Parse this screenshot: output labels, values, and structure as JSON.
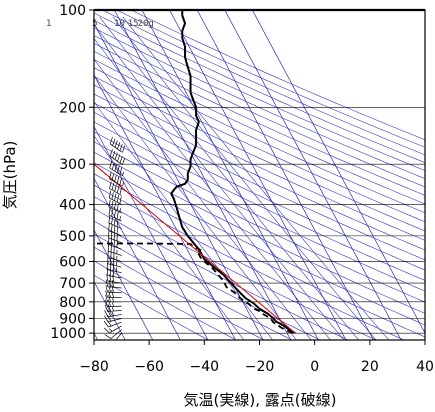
{
  "chart_data": {
    "type": "line",
    "title": "",
    "xlabel": "気温(実線), 露点(破線)",
    "ylabel": "気圧(hPa)",
    "xlim": [
      -80,
      40
    ],
    "ylim_pressure": [
      1050,
      100
    ],
    "y_scale": "log",
    "x_ticks": [
      -80,
      -60,
      -40,
      -20,
      0,
      20,
      40
    ],
    "y_ticks": [
      100,
      200,
      300,
      400,
      500,
      600,
      700,
      800,
      900,
      1000
    ],
    "grid": true,
    "mixing_ratio_labels": [
      "1",
      "5",
      "10",
      "15",
      "20g"
    ],
    "mixing_ratio_values": [
      1,
      5,
      10,
      15,
      20
    ],
    "colors": {
      "isotherm": "#2a2ab8",
      "dry_adiabat": "#3333cc",
      "mixing_ratio": "#3a3ac0",
      "parcel": "#dd0000",
      "grid": "#000000",
      "temperature": "#000000",
      "dewpoint": "#000000"
    },
    "series": [
      {
        "role": "temperature",
        "points": [
          [
            -7,
            1000
          ],
          [
            -9,
            980
          ],
          [
            -11,
            950
          ],
          [
            -14,
            920
          ],
          [
            -15,
            900
          ],
          [
            -17,
            870
          ],
          [
            -20,
            840
          ],
          [
            -22,
            810
          ],
          [
            -25,
            780
          ],
          [
            -27,
            750
          ],
          [
            -29,
            720
          ],
          [
            -31,
            690
          ],
          [
            -33,
            660
          ],
          [
            -36,
            630
          ],
          [
            -38,
            610
          ],
          [
            -40,
            590
          ],
          [
            -41,
            570
          ],
          [
            -42,
            550
          ],
          [
            -44,
            525
          ],
          [
            -46,
            500
          ],
          [
            -48,
            470
          ],
          [
            -49,
            440
          ],
          [
            -50,
            410
          ],
          [
            -51,
            385
          ],
          [
            -52,
            370
          ],
          [
            -51,
            360
          ],
          [
            -50,
            352
          ],
          [
            -47,
            345
          ],
          [
            -46,
            335
          ],
          [
            -46,
            320
          ],
          [
            -45,
            305
          ],
          [
            -45,
            290
          ],
          [
            -44,
            275
          ],
          [
            -43,
            262
          ],
          [
            -43,
            248
          ],
          [
            -43,
            235
          ],
          [
            -42,
            222
          ],
          [
            -43,
            212
          ],
          [
            -43,
            200
          ],
          [
            -44,
            190
          ],
          [
            -45,
            180
          ],
          [
            -45,
            170
          ],
          [
            -45,
            160
          ],
          [
            -46,
            150
          ],
          [
            -47,
            140
          ],
          [
            -47,
            130
          ],
          [
            -48,
            122
          ],
          [
            -48,
            116
          ],
          [
            -47,
            110
          ],
          [
            -48,
            104
          ],
          [
            -48,
            100
          ]
        ]
      },
      {
        "role": "dewpoint",
        "points": [
          [
            -8,
            1000
          ],
          [
            -11,
            975
          ],
          [
            -13,
            950
          ],
          [
            -15,
            925
          ],
          [
            -16,
            900
          ],
          [
            -19,
            870
          ],
          [
            -20,
            855
          ],
          [
            -22,
            840
          ],
          [
            -24,
            810
          ],
          [
            -27,
            780
          ],
          [
            -29,
            750
          ],
          [
            -32,
            720
          ],
          [
            -33,
            690
          ],
          [
            -35,
            660
          ],
          [
            -37,
            630
          ],
          [
            -39,
            610
          ],
          [
            -41,
            590
          ],
          [
            -42,
            570
          ],
          [
            -41,
            555
          ],
          [
            -44,
            540
          ],
          [
            -45,
            530
          ],
          [
            -60,
            528
          ],
          [
            -80,
            528
          ]
        ]
      },
      {
        "role": "parcel",
        "points": [
          [
            -7,
            1000
          ],
          [
            -80,
            300
          ]
        ]
      }
    ],
    "wind_barbs": {
      "pressures": [
        1000,
        975,
        950,
        925,
        900,
        875,
        850,
        825,
        800,
        775,
        750,
        725,
        700,
        675,
        650,
        625,
        600,
        575,
        550,
        525,
        500,
        475,
        450,
        425,
        400,
        375,
        350,
        325,
        300,
        275
      ],
      "direction_deg": [
        220,
        230,
        240,
        250,
        255,
        260,
        265,
        268,
        270,
        270,
        272,
        275,
        278,
        280,
        282,
        284,
        286,
        288,
        290,
        290,
        292,
        294,
        295,
        296,
        298,
        300,
        300,
        302,
        305,
        305
      ],
      "speed_kt": [
        5,
        10,
        15,
        20,
        20,
        25,
        25,
        25,
        25,
        30,
        30,
        30,
        30,
        30,
        35,
        35,
        35,
        35,
        40,
        40,
        40,
        40,
        45,
        45,
        50,
        50,
        55,
        55,
        60,
        60
      ]
    }
  }
}
